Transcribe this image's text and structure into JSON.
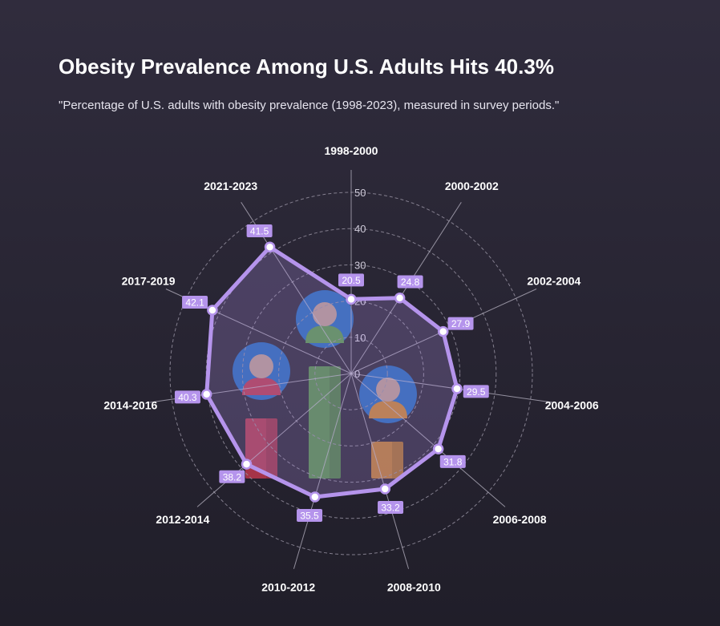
{
  "title": "Obesity Prevalence Among U.S. Adults Hits 40.3%",
  "subtitle": "\"Percentage of U.S. adults with obesity prevalence (1998-2023), measured in survey periods.\"",
  "colors": {
    "series": "#b594ec",
    "series_fill": "#b594ec",
    "label_bg": "#b594ec",
    "grid": "#8e8a99",
    "axis": "#b9b5c4",
    "icon_blue": "#1f6fc9",
    "icon_green": "#5aa34a",
    "icon_red": "#c6394f",
    "icon_orange": "#d98b2b",
    "skin": "#c9a79a"
  },
  "chart_data": {
    "type": "radar",
    "categories": [
      "1998-2000",
      "2000-2002",
      "2002-2004",
      "2004-2006",
      "2006-2008",
      "2008-2010",
      "2010-2012",
      "2012-2014",
      "2014-2016",
      "2017-2019",
      "2021-2023"
    ],
    "values": [
      20.5,
      24.8,
      27.9,
      29.5,
      31.8,
      33.2,
      35.5,
      38.2,
      40.3,
      42.1,
      41.5
    ],
    "value_labels": [
      "20.5",
      "24.8",
      "27.9",
      "29.5",
      "31.8",
      "33.2",
      "35.5",
      "38.2",
      "40.3",
      "42.1",
      "41.5"
    ],
    "ticks": [
      0,
      10,
      20,
      30,
      40,
      50
    ],
    "tick_labels": [
      "0",
      "10",
      "20",
      "30",
      "40",
      "50"
    ],
    "rmax": 50,
    "grid": true,
    "legend": "none"
  },
  "decorations": {
    "icons": [
      "person-green-icon",
      "person-red-icon",
      "person-orange-icon"
    ],
    "bars": [
      "green",
      "red",
      "orange"
    ]
  }
}
